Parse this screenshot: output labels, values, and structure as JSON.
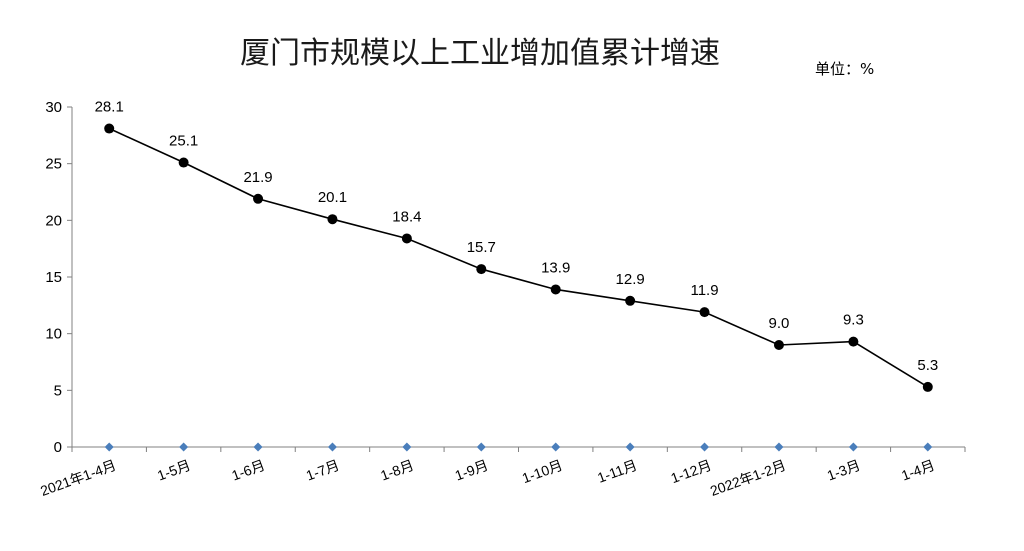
{
  "chart_data": {
    "type": "line",
    "title": "厦门市规模以上工业增加值累计增速",
    "unit_label": "单位：%",
    "categories": [
      "2021年1-4月",
      "1-5月",
      "1-6月",
      "1-7月",
      "1-8月",
      "1-9月",
      "1-10月",
      "1-11月",
      "1-12月",
      "2022年1-2月",
      "1-3月",
      "1-4月"
    ],
    "series": [
      {
        "values": [
          28.1,
          25.1,
          21.9,
          20.1,
          18.4,
          15.7,
          13.9,
          12.9,
          11.9,
          9.0,
          9.3,
          5.3
        ],
        "color": "#000000"
      },
      {
        "values": [
          0,
          0,
          0,
          0,
          0,
          0,
          0,
          0,
          0,
          0,
          0,
          0
        ],
        "color": "#4a7ebb"
      }
    ],
    "data_labels": [
      "28.1",
      "25.1",
      "21.9",
      "20.1",
      "18.4",
      "15.7",
      "13.9",
      "12.9",
      "11.9",
      "9.0",
      "9.3",
      "5.3"
    ],
    "y_ticks": [
      "0",
      "5",
      "10",
      "15",
      "20",
      "25",
      "30"
    ],
    "ylim": [
      0,
      30
    ],
    "grid": false,
    "legend": "none"
  }
}
